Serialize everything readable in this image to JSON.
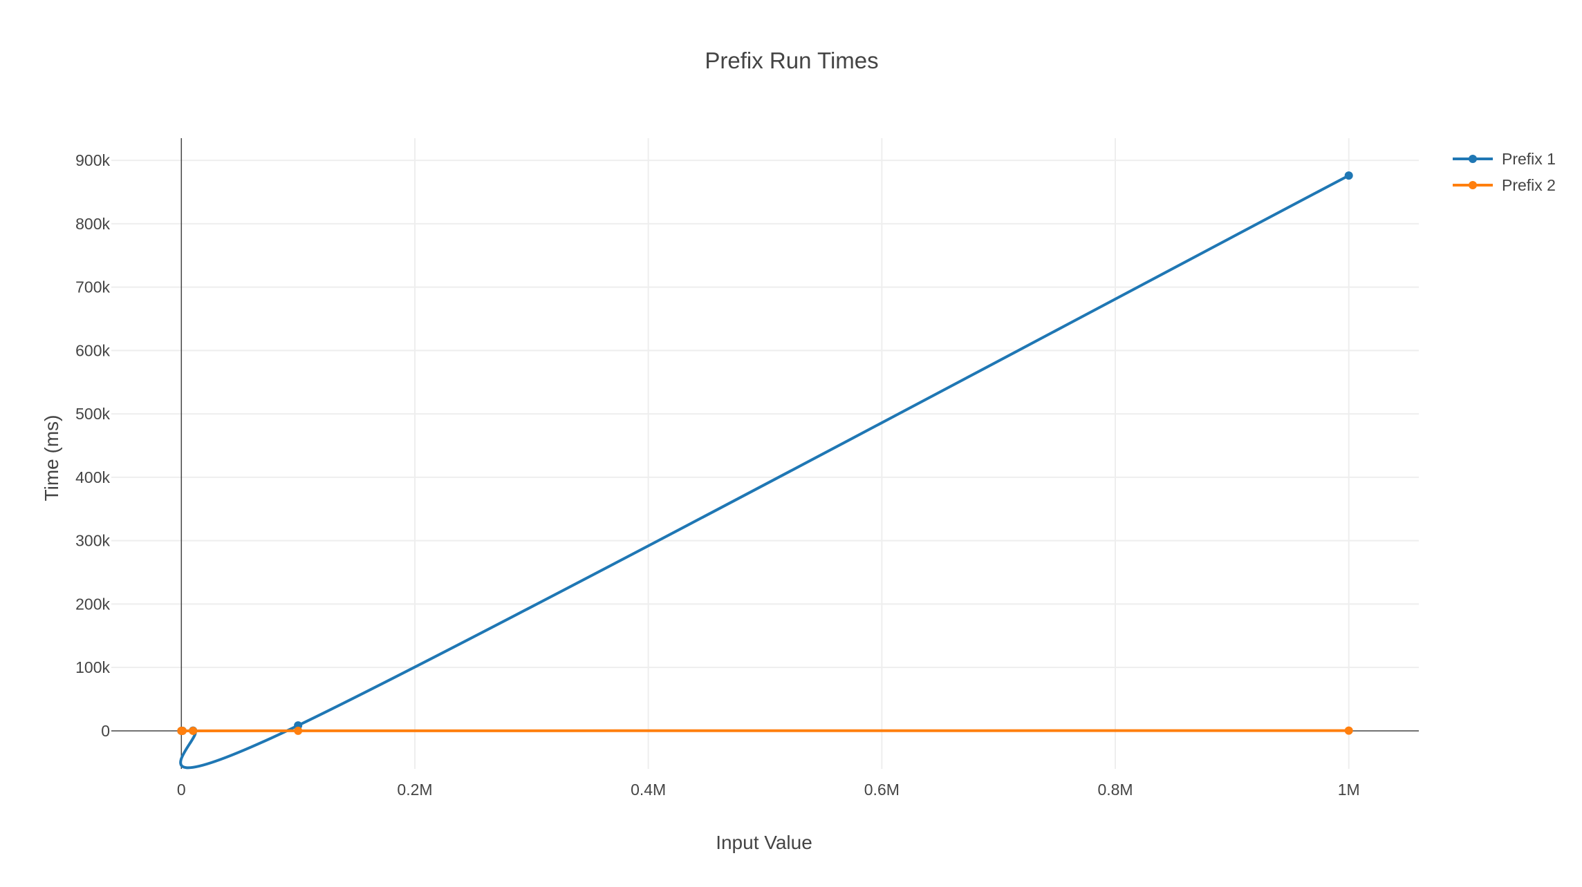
{
  "chart_data": {
    "type": "line",
    "title": "Prefix Run Times",
    "xlabel": "Input Value",
    "ylabel": "Time (ms)",
    "xlim": [
      -60000,
      1060000
    ],
    "ylim": [
      -60000,
      935000
    ],
    "xticks": [
      0,
      200000,
      400000,
      600000,
      800000,
      1000000
    ],
    "xtick_labels": [
      "0",
      "0.2M",
      "0.4M",
      "0.6M",
      "0.8M",
      "1M"
    ],
    "yticks": [
      0,
      100000,
      200000,
      300000,
      400000,
      500000,
      600000,
      700000,
      800000,
      900000
    ],
    "ytick_labels": [
      "0",
      "100k",
      "200k",
      "300k",
      "400k",
      "500k",
      "600k",
      "700k",
      "800k",
      "900k"
    ],
    "grid": true,
    "legend_position": "top-right",
    "line_shape": "spline",
    "series": [
      {
        "name": "Prefix 1",
        "color": "#1f77b4",
        "x": [
          10,
          100,
          1000,
          10000,
          100000,
          1000000
        ],
        "y": [
          0,
          2,
          15,
          300,
          8500,
          876000
        ]
      },
      {
        "name": "Prefix 2",
        "color": "#ff7f0e",
        "x": [
          10,
          100,
          1000,
          10000,
          100000,
          1000000
        ],
        "y": [
          0,
          0,
          1,
          2,
          40,
          400
        ]
      }
    ]
  }
}
